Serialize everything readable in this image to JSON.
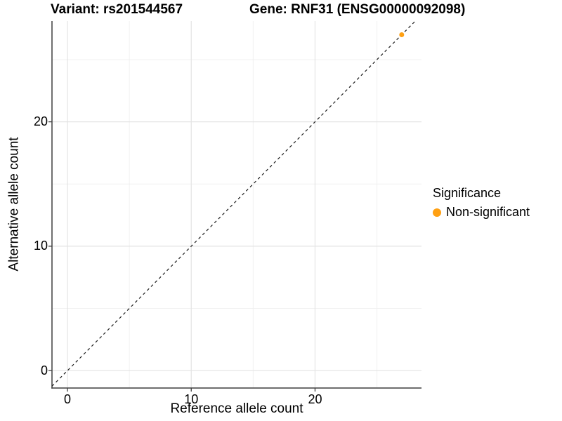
{
  "titles": {
    "variant": "Variant: rs201544567",
    "gene": "Gene: RNF31 (ENSG00000092098)"
  },
  "chart_data": {
    "type": "scatter",
    "title": "Variant: rs201544567 — Gene: RNF31 (ENSG00000092098)",
    "xlabel": "Reference allele count",
    "ylabel": "Alternative allele count",
    "xlim": [
      -1.25,
      28.6
    ],
    "ylim": [
      -1.4,
      28.1
    ],
    "x_major_ticks": [
      0,
      10,
      20
    ],
    "y_major_ticks": [
      0,
      10,
      20
    ],
    "x_minor_gridlines": [
      5,
      15,
      25
    ],
    "y_minor_gridlines": [
      5,
      15,
      25
    ],
    "grid": true,
    "identity_line": {
      "style": "dashed",
      "equation": "y = x",
      "color": "#1a1a1a"
    },
    "series": [
      {
        "name": "Non-significant",
        "color": "#FFA013",
        "points": [
          {
            "x": 27,
            "y": 27
          }
        ]
      }
    ],
    "legend_position": "right"
  },
  "legend": {
    "title": "Significance",
    "items": [
      {
        "label": "Non-significant",
        "color": "#FFA013"
      }
    ]
  },
  "colors": {
    "background": "#FFFFFF",
    "axis_line": "#3F3F3F",
    "grid_major": "#E4E4E4",
    "grid_minor": "#F0F0F0",
    "dashed_line": "#1A1A1A",
    "point_orange": "#FFA013",
    "text": "#000000"
  }
}
